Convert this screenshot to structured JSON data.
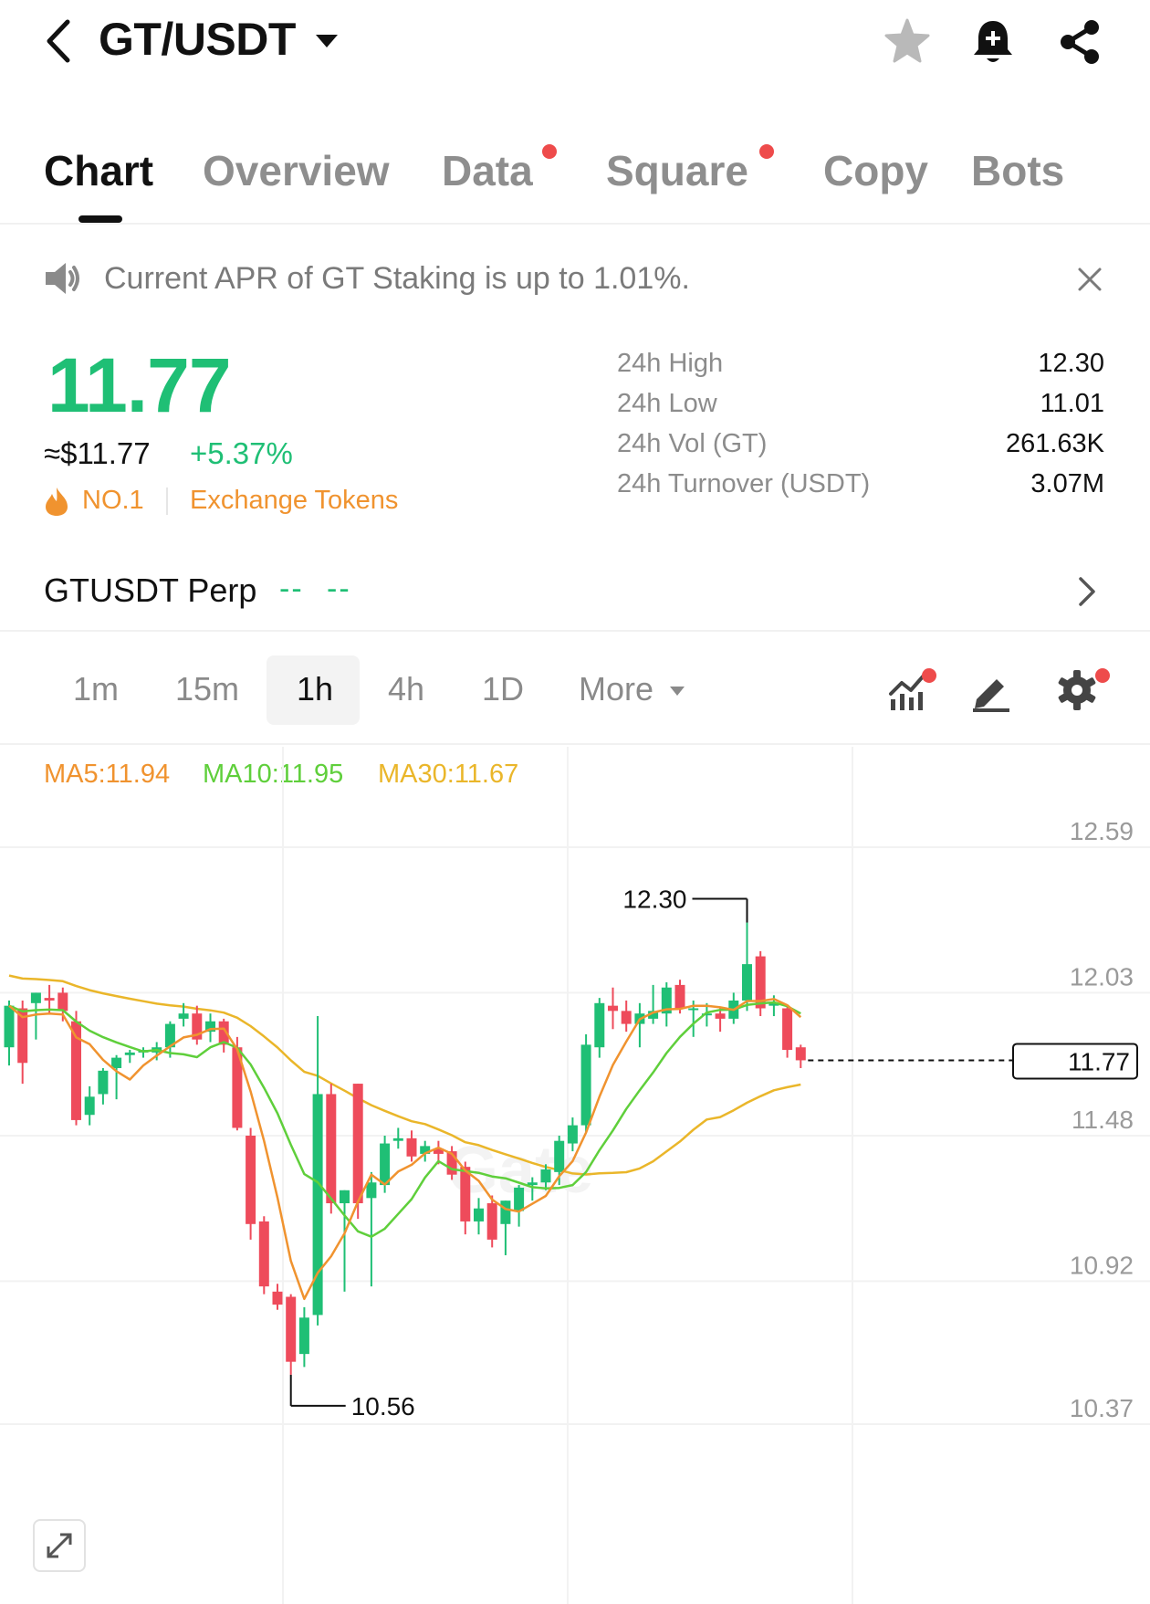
{
  "header": {
    "pair": "GT/USDT"
  },
  "tabs": [
    {
      "label": "Chart",
      "active": true,
      "dot": false
    },
    {
      "label": "Overview",
      "active": false,
      "dot": false
    },
    {
      "label": "Data",
      "active": false,
      "dot": true
    },
    {
      "label": "Square",
      "active": false,
      "dot": true
    },
    {
      "label": "Copy",
      "active": false,
      "dot": false
    },
    {
      "label": "Bots",
      "active": false,
      "dot": false
    }
  ],
  "notice": {
    "text": "Current APR of GT Staking is up to 1.01%."
  },
  "ticker": {
    "price": "11.77",
    "usd_price": "≈$11.77",
    "change": "+5.37%",
    "rank": "NO.1",
    "category": "Exchange Tokens",
    "stats": [
      {
        "label": "24h High",
        "value": "12.30"
      },
      {
        "label": "24h Low",
        "value": "11.01"
      },
      {
        "label": "24h Vol (GT)",
        "value": "261.63K"
      },
      {
        "label": "24h Turnover (USDT)",
        "value": "3.07M"
      }
    ]
  },
  "perp": {
    "label": "GTUSDT Perp",
    "price": "--",
    "change": "--"
  },
  "intervals": [
    {
      "label": "1m",
      "active": false
    },
    {
      "label": "15m",
      "active": false
    },
    {
      "label": "1h",
      "active": true
    },
    {
      "label": "4h",
      "active": false
    },
    {
      "label": "1D",
      "active": false
    },
    {
      "label": "More",
      "active": false
    }
  ],
  "indicators": {
    "ma5": "MA5:11.94",
    "ma10": "MA10:11.95",
    "ma30": "MA30:11.67"
  },
  "colors": {
    "up": "#1fbf75",
    "down": "#ee4b5b",
    "ma5": "#f0932f",
    "ma10": "#5fcf3b",
    "ma30": "#eab62a",
    "alert_dot": "#ee4b4b"
  },
  "chart_data": {
    "type": "candlestick",
    "price_axis_labels": [
      "12.59",
      "12.03",
      "11.48",
      "10.92",
      "10.37"
    ],
    "y_range": [
      10.37,
      12.72
    ],
    "current_price": "11.77",
    "high_marker": "12.30",
    "low_marker": "10.56",
    "candles": [
      {
        "o": 11.82,
        "h": 12.0,
        "l": 11.75,
        "c": 11.98
      },
      {
        "o": 11.97,
        "h": 12.0,
        "l": 11.68,
        "c": 11.76
      },
      {
        "o": 11.99,
        "h": 12.03,
        "l": 11.85,
        "c": 12.03
      },
      {
        "o": 12.01,
        "h": 12.06,
        "l": 11.95,
        "c": 12.0
      },
      {
        "o": 12.03,
        "h": 12.05,
        "l": 11.92,
        "c": 11.96
      },
      {
        "o": 11.92,
        "h": 11.96,
        "l": 11.52,
        "c": 11.54
      },
      {
        "o": 11.56,
        "h": 11.67,
        "l": 11.52,
        "c": 11.63
      },
      {
        "o": 11.64,
        "h": 11.74,
        "l": 11.6,
        "c": 11.73
      },
      {
        "o": 11.74,
        "h": 11.79,
        "l": 11.62,
        "c": 11.78
      },
      {
        "o": 11.79,
        "h": 11.81,
        "l": 11.76,
        "c": 11.8
      },
      {
        "o": 11.8,
        "h": 11.82,
        "l": 11.78,
        "c": 11.81
      },
      {
        "o": 11.8,
        "h": 11.84,
        "l": 11.77,
        "c": 11.82
      },
      {
        "o": 11.82,
        "h": 11.92,
        "l": 11.78,
        "c": 11.91
      },
      {
        "o": 11.93,
        "h": 11.99,
        "l": 11.9,
        "c": 11.95
      },
      {
        "o": 11.95,
        "h": 11.98,
        "l": 11.83,
        "c": 11.85
      },
      {
        "o": 11.88,
        "h": 11.95,
        "l": 11.84,
        "c": 11.92
      },
      {
        "o": 11.92,
        "h": 11.93,
        "l": 11.8,
        "c": 11.83
      },
      {
        "o": 11.82,
        "h": 11.86,
        "l": 11.5,
        "c": 11.51
      },
      {
        "o": 11.48,
        "h": 11.51,
        "l": 11.08,
        "c": 11.14
      },
      {
        "o": 11.15,
        "h": 11.17,
        "l": 10.87,
        "c": 10.9
      },
      {
        "o": 10.88,
        "h": 10.91,
        "l": 10.81,
        "c": 10.83
      },
      {
        "o": 10.86,
        "h": 10.87,
        "l": 10.56,
        "c": 10.61
      },
      {
        "o": 10.64,
        "h": 10.82,
        "l": 10.59,
        "c": 10.78
      },
      {
        "o": 10.79,
        "h": 11.94,
        "l": 10.75,
        "c": 11.64
      },
      {
        "o": 11.64,
        "h": 11.68,
        "l": 11.18,
        "c": 11.22
      },
      {
        "o": 11.22,
        "h": 11.27,
        "l": 10.88,
        "c": 11.27
      },
      {
        "o": 11.68,
        "h": 11.68,
        "l": 11.16,
        "c": 11.22
      },
      {
        "o": 11.24,
        "h": 11.34,
        "l": 10.9,
        "c": 11.3
      },
      {
        "o": 11.29,
        "h": 11.48,
        "l": 11.26,
        "c": 11.45
      },
      {
        "o": 11.46,
        "h": 11.51,
        "l": 11.43,
        "c": 11.47
      },
      {
        "o": 11.47,
        "h": 11.5,
        "l": 11.38,
        "c": 11.4
      },
      {
        "o": 11.41,
        "h": 11.46,
        "l": 11.38,
        "c": 11.44
      },
      {
        "o": 11.43,
        "h": 11.46,
        "l": 11.37,
        "c": 11.41
      },
      {
        "o": 11.42,
        "h": 11.44,
        "l": 11.31,
        "c": 11.33
      },
      {
        "o": 11.36,
        "h": 11.38,
        "l": 11.1,
        "c": 11.15
      },
      {
        "o": 11.15,
        "h": 11.24,
        "l": 11.1,
        "c": 11.2
      },
      {
        "o": 11.22,
        "h": 11.25,
        "l": 11.05,
        "c": 11.08
      },
      {
        "o": 11.14,
        "h": 11.23,
        "l": 11.02,
        "c": 11.23
      },
      {
        "o": 11.19,
        "h": 11.29,
        "l": 11.13,
        "c": 11.28
      },
      {
        "o": 11.29,
        "h": 11.32,
        "l": 11.23,
        "c": 11.3
      },
      {
        "o": 11.3,
        "h": 11.37,
        "l": 11.27,
        "c": 11.35
      },
      {
        "o": 11.34,
        "h": 11.48,
        "l": 11.29,
        "c": 11.46
      },
      {
        "o": 11.45,
        "h": 11.55,
        "l": 11.42,
        "c": 11.52
      },
      {
        "o": 11.52,
        "h": 11.87,
        "l": 11.49,
        "c": 11.83
      },
      {
        "o": 11.82,
        "h": 12.01,
        "l": 11.78,
        "c": 11.99
      },
      {
        "o": 11.98,
        "h": 12.05,
        "l": 11.89,
        "c": 11.96
      },
      {
        "o": 11.96,
        "h": 12.0,
        "l": 11.88,
        "c": 11.91
      },
      {
        "o": 11.91,
        "h": 11.99,
        "l": 11.82,
        "c": 11.95
      },
      {
        "o": 11.93,
        "h": 12.06,
        "l": 11.91,
        "c": 11.96
      },
      {
        "o": 11.95,
        "h": 12.07,
        "l": 11.9,
        "c": 12.05
      },
      {
        "o": 12.06,
        "h": 12.08,
        "l": 11.95,
        "c": 11.97
      },
      {
        "o": 11.97,
        "h": 12.0,
        "l": 11.86,
        "c": 11.97
      },
      {
        "o": 11.95,
        "h": 11.99,
        "l": 11.9,
        "c": 11.95
      },
      {
        "o": 11.95,
        "h": 11.97,
        "l": 11.88,
        "c": 11.93
      },
      {
        "o": 11.93,
        "h": 12.03,
        "l": 11.91,
        "c": 12.0
      },
      {
        "o": 12.0,
        "h": 12.3,
        "l": 11.96,
        "c": 12.14
      },
      {
        "o": 12.17,
        "h": 12.19,
        "l": 11.94,
        "c": 11.97
      },
      {
        "o": 11.98,
        "h": 12.02,
        "l": 11.94,
        "c": 11.99
      },
      {
        "o": 11.97,
        "h": 11.98,
        "l": 11.78,
        "c": 11.81
      },
      {
        "o": 11.82,
        "h": 11.83,
        "l": 11.74,
        "c": 11.77
      }
    ]
  }
}
